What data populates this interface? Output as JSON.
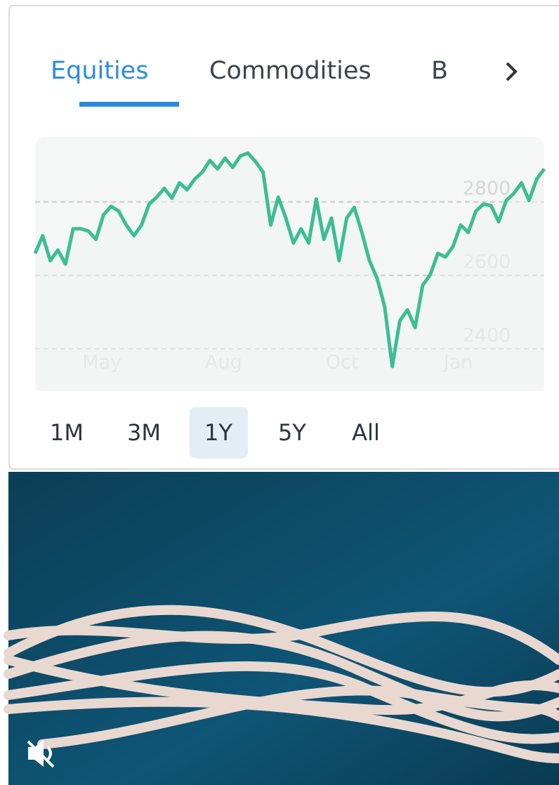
{
  "tabs": [
    "Equities",
    "Commodities",
    "B"
  ],
  "chart_data": {
    "type": "line",
    "values": [
      2660,
      2708,
      2640,
      2669,
      2631,
      2727,
      2727,
      2721,
      2698,
      2765,
      2788,
      2775,
      2737,
      2708,
      2737,
      2794,
      2813,
      2837,
      2810,
      2852,
      2833,
      2862,
      2881,
      2913,
      2890,
      2919,
      2894,
      2925,
      2933,
      2910,
      2881,
      2737,
      2813,
      2756,
      2688,
      2727,
      2688,
      2808,
      2698,
      2756,
      2640,
      2756,
      2785,
      2717,
      2640,
      2592,
      2515,
      2352,
      2477,
      2506,
      2458,
      2573,
      2602,
      2660,
      2650,
      2679,
      2737,
      2717,
      2775,
      2794,
      2790,
      2746,
      2804,
      2823,
      2852,
      2804,
      2862,
      2890
    ],
    "color": "#3dbd94",
    "xlim": [
      0,
      67
    ],
    "xticks": [
      {
        "value": 8.8,
        "label": "May"
      },
      {
        "value": 24.8,
        "label": "Aug"
      },
      {
        "value": 40.4,
        "label": "Oct"
      },
      {
        "value": 55.7,
        "label": "Jan"
      }
    ],
    "ylim": [
      2285,
      2977
    ],
    "yticks": [
      2400,
      2600,
      2800
    ],
    "grid": true
  },
  "ranges": [
    "1M",
    "3M",
    "1Y",
    "5Y",
    "All"
  ],
  "selected_range": "1Y"
}
